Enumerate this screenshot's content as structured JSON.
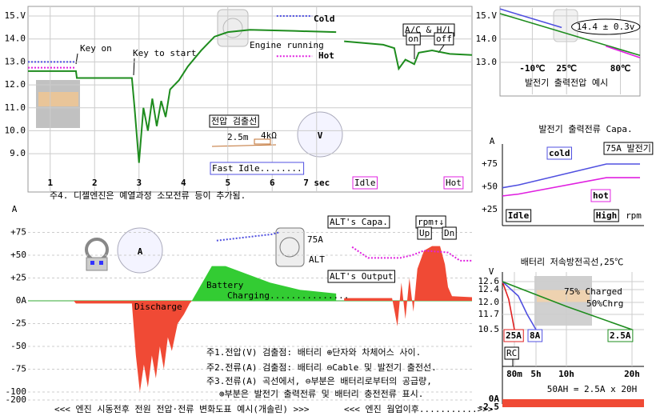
{
  "chart_data": [
    {
      "type": "line",
      "xlim": [
        0.5,
        10.5
      ],
      "ylim": [
        7.33,
        15.42
      ],
      "grid": true,
      "xticks": [
        1,
        2,
        3,
        4,
        5,
        6,
        {
          "value": 7,
          "label": "7 sec"
        }
      ],
      "yticks": [
        {
          "value": 15,
          "label": "15.V"
        },
        {
          "value": 14,
          "label": "14.0"
        },
        {
          "value": 13,
          "label": "13.0"
        },
        {
          "value": 12,
          "label": "12.0"
        },
        {
          "value": 11,
          "label": "11.0"
        },
        {
          "value": 10,
          "label": "10.0"
        },
        {
          "value": 9,
          "label": "9.0"
        }
      ],
      "series": [
        {
          "color": "#1e8c1e",
          "x": [
            0.5,
            1.58,
            1.6,
            2.84,
            2.9,
            3.0,
            3.1,
            3.2,
            3.3,
            3.4,
            3.5,
            3.6,
            3.7,
            3.9,
            4.1,
            4.4,
            4.7,
            5.0,
            5.5,
            6.5,
            7.44,
            null,
            7.62,
            8.5,
            8.75,
            8.85,
            9.0,
            9.2,
            9.3,
            9.6,
            10.0,
            10.5
          ],
          "values": [
            12.6,
            12.6,
            12.3,
            12.3,
            11.0,
            8.6,
            11.0,
            10.0,
            11.4,
            10.2,
            11.3,
            10.6,
            11.8,
            12.2,
            12.8,
            13.5,
            14.1,
            14.3,
            14.4,
            14.35,
            14.3,
            null,
            13.9,
            13.75,
            13.6,
            12.7,
            13.1,
            12.9,
            13.4,
            13.5,
            13.35,
            13.3
          ]
        },
        {
          "name": "Cold",
          "color": "#5050e0",
          "dotted": true,
          "x": [
            0.5,
            1.58,
            null,
            6.1,
            6.9
          ],
          "values": [
            13.0,
            13.0,
            null,
            15.0,
            15.0
          ]
        },
        {
          "name": "Hot",
          "color": "#e020e0",
          "dotted": true,
          "x": [
            0.5,
            1.58,
            null,
            6.1,
            6.9
          ],
          "values": [
            12.75,
            12.75,
            null,
            13.25,
            13.25
          ]
        }
      ],
      "annotations": [
        "Key on",
        "Key to start",
        "Engine running",
        "A/C & H/L",
        "on",
        "off",
        "전압 검출선",
        "2.5m",
        "4kΩ",
        "Fast Idle........",
        "Idle",
        "Hot",
        "주4. 디젤엔진은 예열과정 소모전류 등이 추가됨.",
        "V"
      ]
    },
    {
      "type": "line",
      "xlim": [
        0.5,
        10.5
      ],
      "ylim": [
        -200,
        100
      ],
      "grid": true,
      "yticks": [
        {
          "value": 75,
          "label": "+75"
        },
        {
          "value": 50,
          "label": "+50"
        },
        {
          "value": 25,
          "label": "+25"
        },
        {
          "value": 0,
          "label": "0A"
        },
        -25,
        -50,
        -75,
        -100,
        -200
      ],
      "series": [
        {
          "color": "#f04a35",
          "area": true,
          "x": [
            0.5,
            1.53,
            1.58,
            2.84,
            2.93,
            3.02,
            3.11,
            3.2,
            3.29,
            3.38,
            3.47,
            3.56,
            3.65,
            3.74,
            3.87,
            4.01,
            4.14,
            4.19
          ],
          "values": [
            0,
            0,
            -3,
            -3,
            -60,
            -100,
            -70,
            -95,
            -60,
            -85,
            -50,
            -75,
            -40,
            -55,
            -25,
            -15,
            -3,
            0
          ]
        },
        {
          "color": "#33cc33",
          "area": true,
          "x": [
            4.19,
            4.64,
            4.95,
            5.95,
            6.63,
            7.44
          ],
          "values": [
            0,
            38,
            38,
            20,
            12,
            8
          ]
        },
        {
          "color": "#f04a35",
          "area": true,
          "x": [
            7.62,
            8.7,
            8.82,
            8.91,
            9.0,
            9.09,
            9.18,
            9.27,
            9.42,
            9.6,
            9.78,
            9.89,
            9.96,
            10.05,
            10.5
          ],
          "values": [
            3,
            3,
            -28,
            20,
            -20,
            25,
            -12,
            35,
            55,
            60,
            60,
            40,
            15,
            5,
            4
          ]
        },
        {
          "color": "#5050e0",
          "dotted": true,
          "x": [
            4.75,
            6.0,
            6.15
          ],
          "values": [
            66,
            73,
            75
          ]
        },
        {
          "color": "#e020e0",
          "dotted": true,
          "x": [
            7.8,
            8.16,
            8.88,
            9.15,
            9.42,
            9.96,
            10.23,
            10.5
          ],
          "values": [
            59,
            47,
            47,
            50,
            55,
            53,
            44,
            44
          ]
        }
      ],
      "annotations": [
        "A",
        "ALT's Capa.",
        "rpm↑↓",
        "Up",
        "Dn",
        "75A",
        "ALT",
        "ALT's Output",
        "Battery",
        "Charging...............",
        "Discharge",
        "주1.전압(V) 검출점: 배터리 ⊕단자와 차체어스 사이.",
        "주2.전류(A) 검출점: 배터리 ⊖Cable 및 발전기 출전선.",
        "주3.전류(A) 곡선에서, ⊖부분은 배터리로부터의 공급량,",
        "⊕부분은 발전기 출력전류 및 배터리 충전전류 표시.",
        "A",
        "<<< 엔진 시동전후 전원 전압·전류 변화도표 예시(개솔린) >>>",
        "<<< 엔진 웜업이후...........>>>"
      ]
    },
    {
      "type": "line",
      "xlim": [
        -43,
        100
      ],
      "ylim": [
        11.62,
        15.34
      ],
      "grid": true,
      "xticks": [
        {
          "value": -10,
          "label": "-10℃"
        },
        {
          "value": 25,
          "label": "25℃"
        },
        {
          "value": 80,
          "label": "80℃"
        }
      ],
      "yticks": [
        {
          "value": 15,
          "label": "15.V"
        },
        {
          "value": 14,
          "label": "14.0"
        },
        {
          "value": 13,
          "label": "13.0"
        }
      ],
      "series": [
        {
          "color": "#1e8c1e",
          "x": [
            -43,
            100
          ],
          "values": [
            15.1,
            13.3
          ]
        },
        {
          "color": "#5050e0",
          "x": [
            -43,
            20
          ],
          "values": [
            15.3,
            14.5
          ]
        },
        {
          "color": "#e020e0",
          "x": [
            65,
            100
          ],
          "values": [
            13.7,
            13.2
          ]
        }
      ],
      "annotations": [
        "14.4 ± 0.3v",
        "발전기 출력전압 예시"
      ]
    },
    {
      "type": "line",
      "categories": [
        null,
        "Idle",
        "High",
        null
      ],
      "ylim": [
        18,
        100
      ],
      "grid": false,
      "yticks": [
        {
          "value": 75,
          "label": "+75"
        },
        {
          "value": 50,
          "label": "+50"
        },
        {
          "value": 25,
          "label": "+25"
        }
      ],
      "series": [
        {
          "name": "cold",
          "color": "#5050e0",
          "values": [
            49,
            52,
            75,
            75
          ]
        },
        {
          "name": "hot",
          "color": "#e020e0",
          "values": [
            40,
            42,
            60,
            60
          ]
        }
      ],
      "annotations": [
        "발전기 출력전류 Capa.",
        "A",
        "75A 발전기",
        "rpm"
      ]
    },
    {
      "type": "line",
      "xlim": [
        0,
        21
      ],
      "ylim": [
        10.0,
        12.8
      ],
      "grid": true,
      "xticks": [
        {
          "value": 1.333,
          "label": "80m"
        },
        {
          "value": 5,
          "label": "5h"
        },
        {
          "value": 10,
          "label": "10h"
        },
        {
          "value": 20,
          "label": "20h"
        }
      ],
      "yticks": [
        12.6,
        12.4,
        {
          "value": 12,
          "label": "12.0"
        },
        11.7,
        10.5
      ],
      "series": [
        {
          "name": "25A",
          "color": "#e02020",
          "x": [
            0,
            0.7,
            1.1,
            1.333
          ],
          "values": [
            12.6,
            12.1,
            11.4,
            10.5
          ]
        },
        {
          "name": "8A",
          "color": "#5050e0",
          "x": [
            0,
            2,
            3.5,
            5
          ],
          "values": [
            12.6,
            12.2,
            11.7,
            10.5
          ]
        },
        {
          "name": "2.5A",
          "color": "#1e8c1e",
          "x": [
            0,
            10,
            20
          ],
          "values": [
            12.6,
            11.9,
            10.5
          ]
        }
      ],
      "current": -2.5,
      "current_ticks": [
        {
          "value": 0,
          "label": "0A"
        },
        -2.5
      ],
      "annotations": [
        "배터리 저속방전곡선,25℃",
        "V",
        "75% Charged",
        "50%Chrg",
        "RC",
        "50AH = 2.5A x 20H"
      ]
    }
  ]
}
